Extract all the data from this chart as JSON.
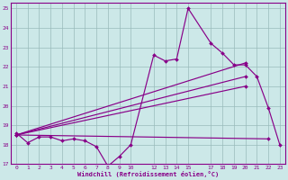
{
  "background_color": "#cce8e8",
  "line_color": "#880088",
  "grid_color": "#99bbbb",
  "xlabel": "Windchill (Refroidissement éolien,°C)",
  "xlim": [
    -0.5,
    23.5
  ],
  "ylim": [
    17,
    25.3
  ],
  "yticks": [
    17,
    18,
    19,
    20,
    21,
    22,
    23,
    24,
    25
  ],
  "xticks": [
    0,
    1,
    2,
    3,
    4,
    5,
    6,
    7,
    8,
    9,
    10,
    12,
    13,
    14,
    15,
    17,
    18,
    19,
    20,
    21,
    22,
    23
  ],
  "lines": [
    {
      "x": [
        0,
        1,
        2,
        3,
        4,
        5,
        6,
        7,
        8,
        9,
        10,
        12,
        13,
        14,
        15,
        17,
        18,
        19,
        20,
        21,
        22,
        23
      ],
      "y": [
        18.6,
        18.1,
        18.4,
        18.4,
        18.2,
        18.3,
        18.2,
        17.9,
        16.9,
        17.4,
        18.0,
        22.6,
        22.3,
        22.4,
        25.0,
        23.2,
        22.7,
        22.1,
        22.1,
        21.5,
        19.9,
        18.0
      ]
    },
    {
      "x": [
        0,
        20
      ],
      "y": [
        18.5,
        22.2
      ]
    },
    {
      "x": [
        0,
        20
      ],
      "y": [
        18.5,
        21.5
      ]
    },
    {
      "x": [
        0,
        20
      ],
      "y": [
        18.5,
        21.0
      ]
    },
    {
      "x": [
        0,
        22
      ],
      "y": [
        18.5,
        18.3
      ]
    }
  ]
}
